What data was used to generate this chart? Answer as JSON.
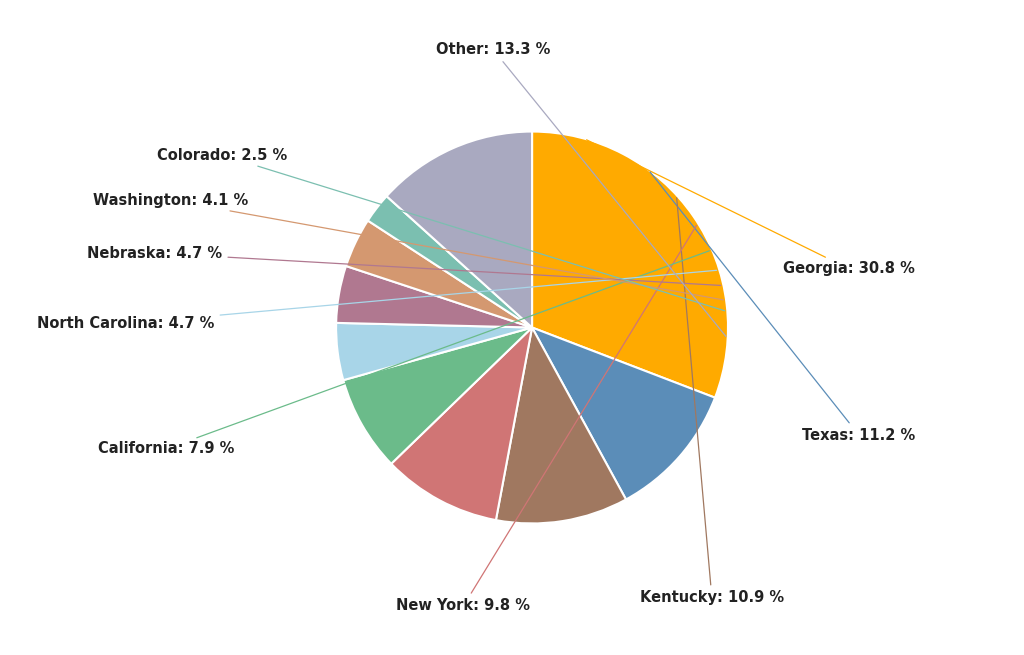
{
  "labels": [
    "Georgia",
    "Texas",
    "Kentucky",
    "New York",
    "California",
    "North Carolina",
    "Nebraska",
    "Washington",
    "Colorado",
    "Other"
  ],
  "values": [
    30.8,
    11.2,
    10.9,
    9.8,
    7.9,
    4.7,
    4.7,
    4.1,
    2.5,
    13.3
  ],
  "colors": [
    "#FFAA00",
    "#5B8DB8",
    "#A07860",
    "#D07575",
    "#6BBB8A",
    "#A8D5E8",
    "#B07890",
    "#D49870",
    "#7BBFB0",
    "#A9A9C0"
  ],
  "background_color": "#ffffff",
  "startangle": 90,
  "label_positions": {
    "Georgia": [
      1.28,
      0.3,
      "left"
    ],
    "Texas": [
      1.38,
      -0.55,
      "left"
    ],
    "Kentucky": [
      0.55,
      -1.38,
      "left"
    ],
    "New York": [
      -0.35,
      -1.42,
      "center"
    ],
    "California": [
      -1.52,
      -0.62,
      "right"
    ],
    "North Carolina": [
      -1.62,
      0.02,
      "right"
    ],
    "Nebraska": [
      -1.58,
      0.38,
      "right"
    ],
    "Washington": [
      -1.45,
      0.65,
      "right"
    ],
    "Colorado": [
      -1.25,
      0.88,
      "right"
    ],
    "Other": [
      -0.2,
      1.42,
      "center"
    ]
  }
}
